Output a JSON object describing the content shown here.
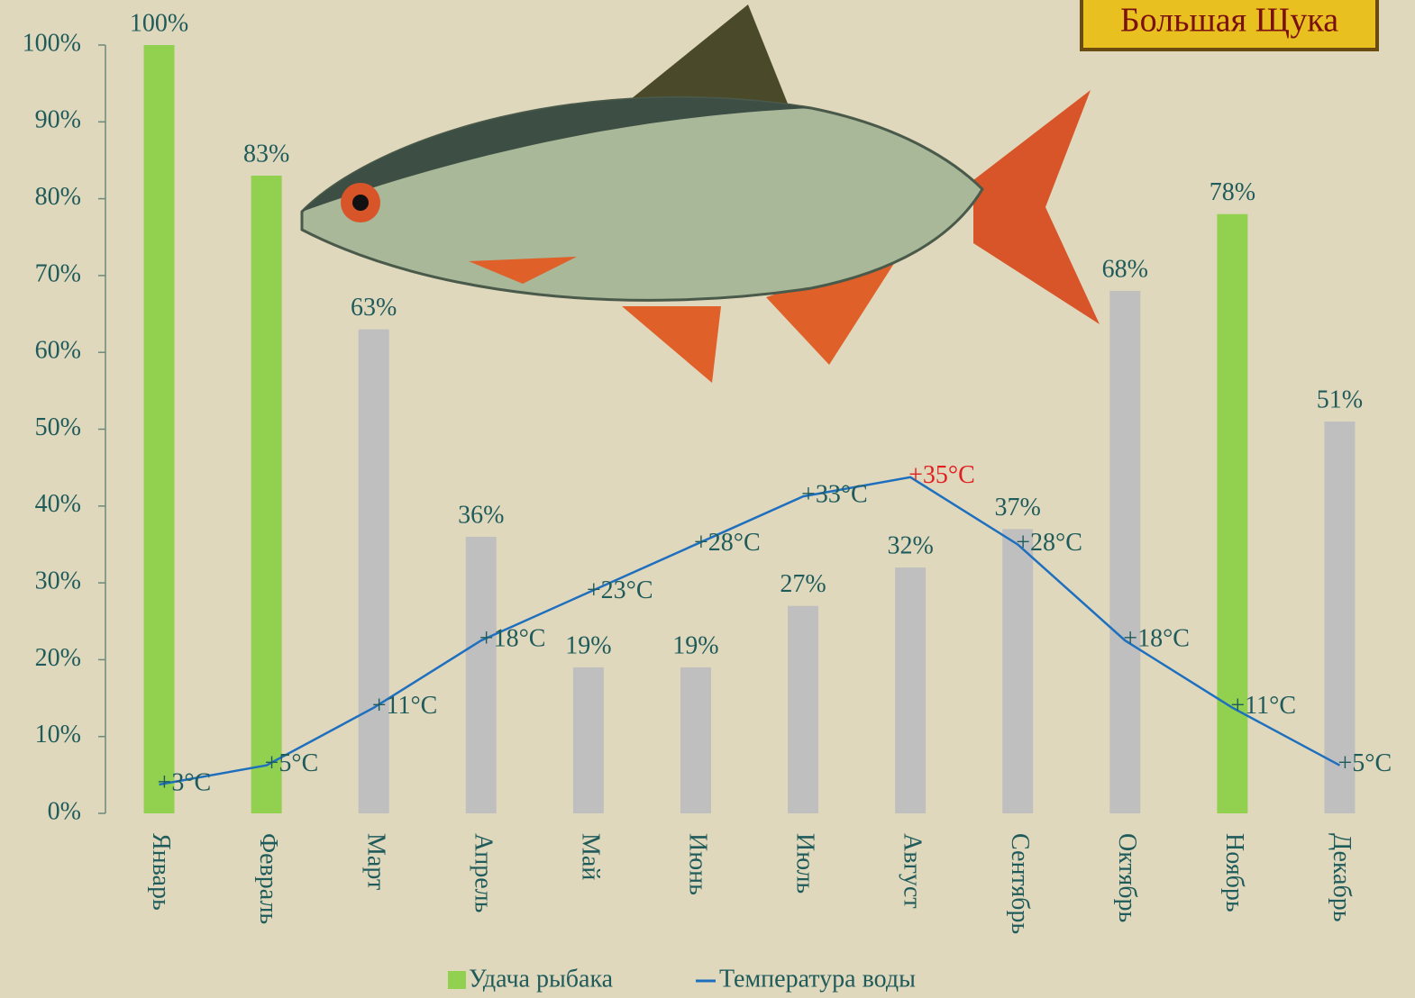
{
  "chart_data": {
    "type": "bar",
    "logo": "Большая Щука",
    "categories": [
      "Январь",
      "Февраль",
      "Март",
      "Апрель",
      "Май",
      "Июнь",
      "Июль",
      "Август",
      "Сентябрь",
      "Октябрь",
      "Ноябрь",
      "Декабрь"
    ],
    "series": [
      {
        "name": "Удача рыбака",
        "type": "bar",
        "color": "#92d050",
        "colors": [
          "#92d050",
          "#92d050",
          "#bfbfbf",
          "#bfbfbf",
          "#bfbfbf",
          "#bfbfbf",
          "#bfbfbf",
          "#bfbfbf",
          "#bfbfbf",
          "#bfbfbf",
          "#92d050",
          "#bfbfbf"
        ],
        "values": [
          100,
          83,
          63,
          36,
          19,
          19,
          27,
          32,
          37,
          68,
          78,
          51
        ],
        "value_labels": [
          "100%",
          "83%",
          "63%",
          "36%",
          "19%",
          "19%",
          "27%",
          "32%",
          "37%",
          "68%",
          "78%",
          "51%"
        ]
      },
      {
        "name": "Температура воды",
        "type": "line",
        "axis": "y2",
        "color": "#1f6fbf",
        "values": [
          3,
          5,
          11,
          18,
          23,
          28,
          33,
          35,
          28,
          18,
          11,
          5
        ],
        "value_labels": [
          "+3°C",
          "+5°C",
          "+11°C",
          "+18°C",
          "+23°C",
          "+28°C",
          "+33°C",
          "+35°C",
          "+28°C",
          "+18°C",
          "+11°C",
          "+5°C"
        ],
        "value_label_colors": [
          "#1f5b5b",
          "#1f5b5b",
          "#1f5b5b",
          "#1f5b5b",
          "#1f5b5b",
          "#1f5b5b",
          "#1f5b5b",
          "#e02020",
          "#1f5b5b",
          "#1f5b5b",
          "#1f5b5b",
          "#1f5b5b"
        ]
      }
    ],
    "ylim": [
      0,
      100
    ],
    "yticks": [
      {
        "value": 0,
        "label": "0%"
      },
      {
        "value": 10,
        "label": "10%"
      },
      {
        "value": 20,
        "label": "20%"
      },
      {
        "value": 30,
        "label": "30%"
      },
      {
        "value": 40,
        "label": "40%"
      },
      {
        "value": 50,
        "label": "50%"
      },
      {
        "value": 60,
        "label": "60%"
      },
      {
        "value": 70,
        "label": "70%"
      },
      {
        "value": 80,
        "label": "80%"
      },
      {
        "value": 90,
        "label": "90%"
      },
      {
        "value": 100,
        "label": "100%"
      }
    ],
    "y2lim": [
      0,
      80
    ]
  }
}
